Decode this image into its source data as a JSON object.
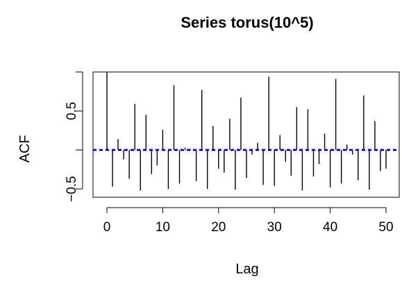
{
  "chart_data": {
    "type": "bar",
    "title": "Series  torus(10^5)",
    "xlabel": "Lag",
    "ylabel": "ACF",
    "x_ticks": [
      0,
      10,
      20,
      30,
      40,
      50
    ],
    "y_ticks": [
      -0.5,
      0.5
    ],
    "xlim": [
      0,
      52
    ],
    "ylim": [
      -0.53,
      1.0
    ],
    "lags": [
      0,
      1,
      2,
      3,
      4,
      5,
      6,
      7,
      8,
      9,
      10,
      11,
      12,
      13,
      14,
      15,
      16,
      17,
      18,
      19,
      20,
      21,
      22,
      23,
      24,
      25,
      26,
      27,
      28,
      29,
      30,
      31,
      32,
      33,
      34,
      35,
      36,
      37,
      38,
      39,
      40,
      41,
      42,
      43,
      44,
      45,
      46,
      47,
      48,
      49,
      50,
      51,
      52
    ],
    "acf": [
      1.0,
      -0.47,
      0.14,
      -0.12,
      -0.37,
      0.59,
      -0.52,
      0.45,
      -0.31,
      -0.2,
      0.26,
      -0.5,
      0.83,
      -0.43,
      0.03,
      0.01,
      -0.4,
      0.77,
      -0.5,
      0.31,
      -0.24,
      -0.29,
      0.4,
      -0.51,
      0.67,
      -0.36,
      -0.06,
      0.09,
      -0.45,
      0.94,
      -0.46,
      0.19,
      -0.15,
      -0.33,
      0.55,
      -0.52,
      0.52,
      -0.34,
      -0.18,
      0.21,
      -0.48,
      0.91,
      -0.43,
      0.07,
      -0.06,
      -0.39,
      0.7,
      -0.51,
      0.37,
      -0.27,
      -0.24,
      0.0,
      0.0
    ],
    "confidence_band": [
      -0.0062,
      0.0062
    ],
    "band_color": "#0000ff",
    "bar_color": "#000000",
    "grid": false
  }
}
